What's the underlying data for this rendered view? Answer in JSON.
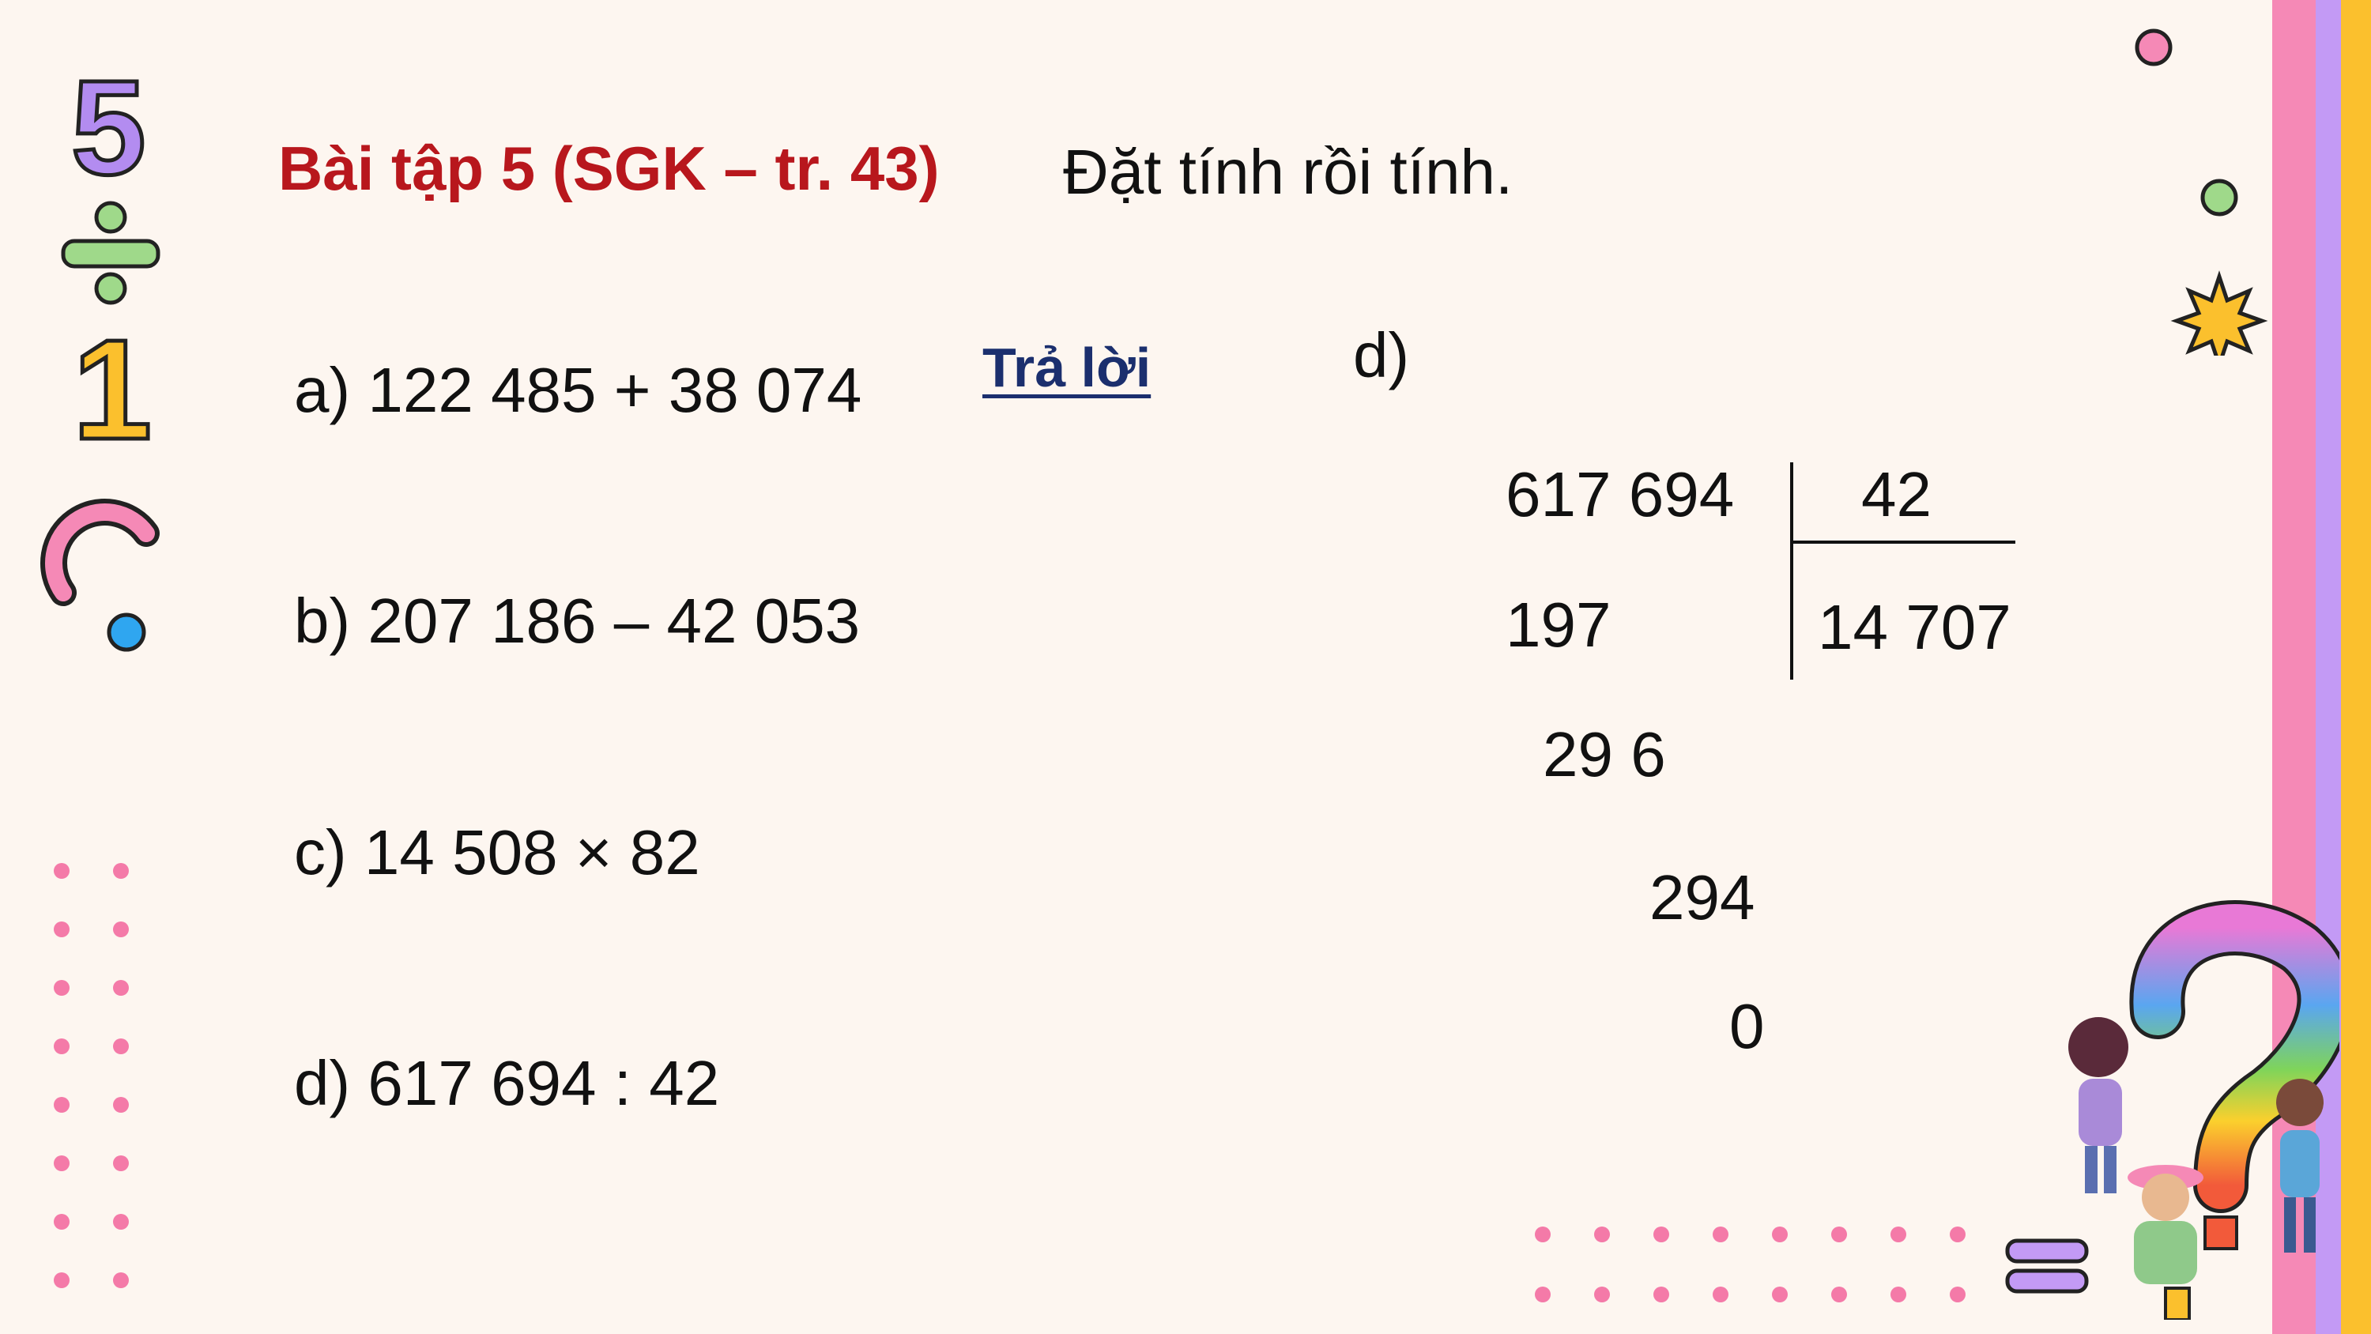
{
  "header": {
    "title": "Bài tập 5 (SGK – tr. 43)",
    "instruction": "Đặt tính rồi tính."
  },
  "exercises": [
    {
      "label": "a) 122 485 + 38 074"
    },
    {
      "label": "b) 207 186 – 42 053"
    },
    {
      "label": "c) 14 508 × 82"
    },
    {
      "label": "d) 617 694 : 42"
    }
  ],
  "answer_link": "Trả lời",
  "division": {
    "part_label": "d)",
    "dividend": "617 694",
    "divisor": "42",
    "quotient": "14 707",
    "steps": [
      "197",
      "29 6",
      "294",
      "0"
    ]
  },
  "decor": {
    "digit_five": "5",
    "digit_one": "1"
  },
  "colors": {
    "title": "#b8171d",
    "answer_link": "#1b2f6e",
    "background": "#fdf6f0",
    "stripe_pink": "#f589b6",
    "stripe_purple": "#c39af5",
    "stripe_yellow": "#fbc02d",
    "dot_pink": "#f47aa8"
  }
}
